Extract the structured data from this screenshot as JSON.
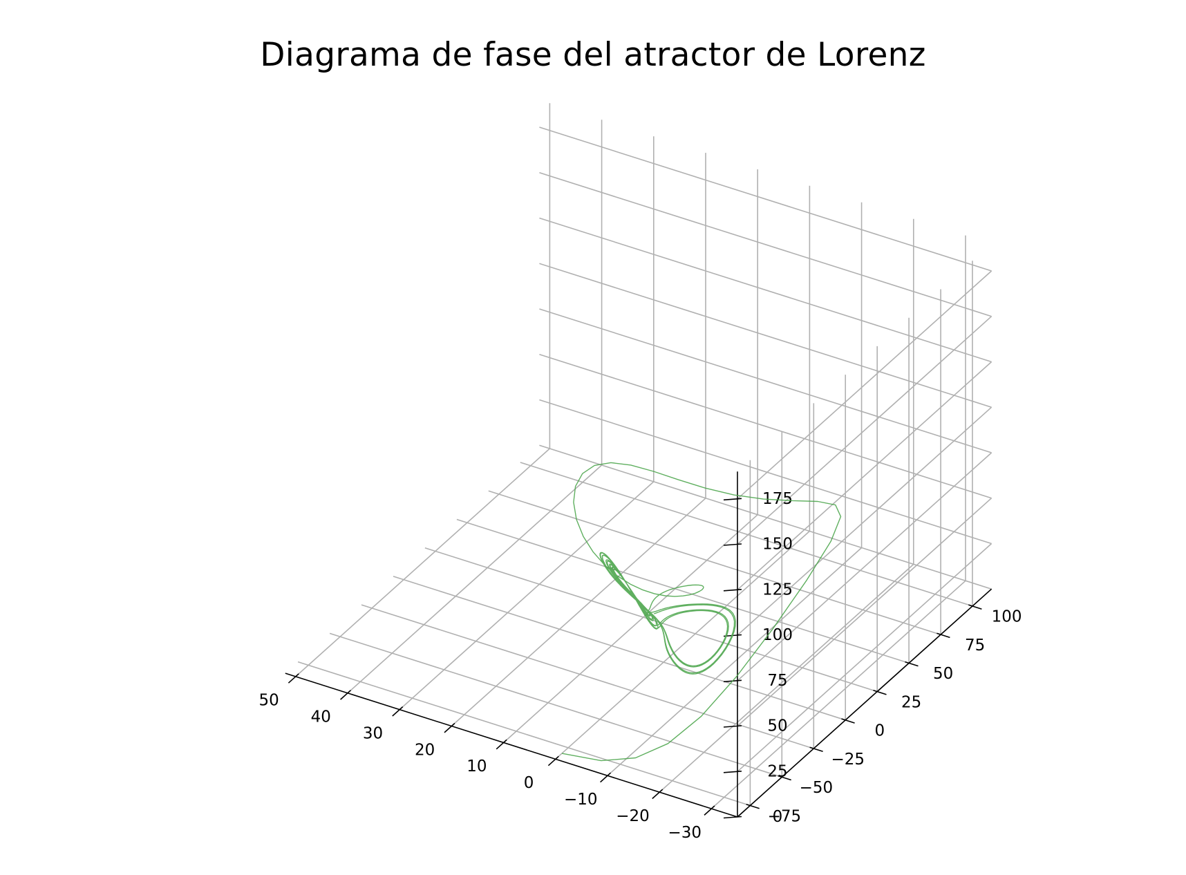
{
  "chart_data": {
    "type": "line",
    "projection": "3d",
    "title": "Diagrama de fase del atractor de Lorenz",
    "xlabel": "",
    "ylabel": "",
    "zlabel": "",
    "grid": true,
    "line_color": "#4ea64e",
    "axes": {
      "x": {
        "range": [
          -35,
          52
        ],
        "ticks": [
          -30,
          -20,
          -10,
          0,
          10,
          20,
          30,
          40,
          50
        ],
        "tick_labels": [
          "−30",
          "−20",
          "−10",
          "0",
          "10",
          "20",
          "30",
          "40",
          "50"
        ]
      },
      "y": {
        "range": [
          -85,
          115
        ],
        "ticks": [
          -75,
          -50,
          -25,
          0,
          25,
          50,
          75,
          100
        ],
        "tick_labels": [
          "−75",
          "−50",
          "−25",
          "0",
          "25",
          "50",
          "75",
          "100"
        ]
      },
      "z": {
        "range": [
          0,
          190
        ],
        "ticks": [
          0,
          25,
          50,
          75,
          100,
          125,
          150,
          175
        ],
        "tick_labels": [
          "0",
          "25",
          "50",
          "75",
          "100",
          "125",
          "150",
          "175"
        ]
      }
    },
    "series": [
      {
        "values": "Lorenz trajectory, initial point approx (0, -80, 0) with sigma approx 10, rho approx 28, beta approx 8/3"
      }
    ]
  }
}
